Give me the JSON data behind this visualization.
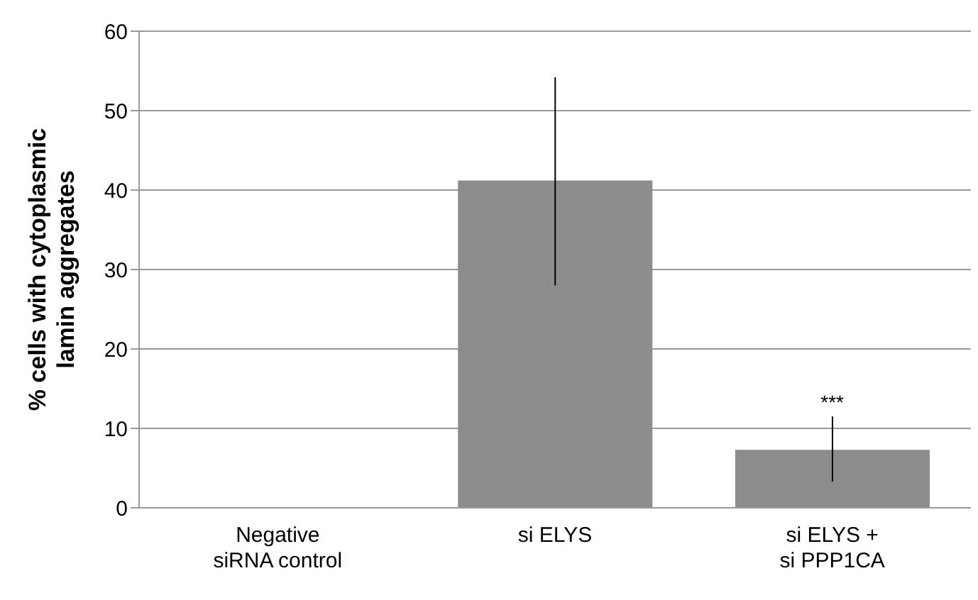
{
  "chart_data": {
    "type": "bar",
    "ylabel": "% cells with cytoplasmic lamin aggregates",
    "categories": [
      "Negative\nsiRNA control",
      "si ELYS",
      "si ELYS +\nsi PPP1CA"
    ],
    "values": [
      0,
      41.2,
      7.3
    ],
    "errors": [
      null,
      [
        28,
        54.2
      ],
      [
        3.3,
        11.5
      ]
    ],
    "color": "#8c8c8c",
    "ylim": [
      0,
      60
    ],
    "yticks": [
      0,
      10,
      20,
      30,
      40,
      50,
      60
    ],
    "grid": "y",
    "annotations": [
      {
        "text": "***",
        "x": "si ELYS +\nsi PPP1CA",
        "y": 11.5
      }
    ]
  }
}
